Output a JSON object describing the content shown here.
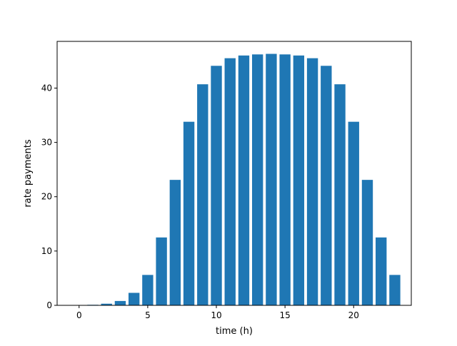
{
  "chart_data": {
    "type": "bar",
    "title": "",
    "xlabel": "time (h)",
    "ylabel": "rate payments",
    "x": [
      0,
      1,
      2,
      3,
      4,
      5,
      6,
      7,
      8,
      9,
      10,
      11,
      12,
      13,
      14,
      15,
      16,
      17,
      18,
      19,
      20,
      21,
      22,
      23
    ],
    "values": [
      0.0,
      0.1,
      0.3,
      0.8,
      2.3,
      5.6,
      12.5,
      23.1,
      33.8,
      40.7,
      44.1,
      45.5,
      46.0,
      46.2,
      46.3,
      46.2,
      46.0,
      45.5,
      44.1,
      40.7,
      33.8,
      23.1,
      12.5,
      5.6
    ],
    "xlim": [
      -1.6,
      24.2
    ],
    "ylim": [
      0,
      48.6
    ],
    "xticks": [
      0,
      5,
      10,
      15,
      20
    ],
    "yticks": [
      0,
      10,
      20,
      30,
      40
    ],
    "bar_width": 0.8,
    "grid": false,
    "legend": "none",
    "colors": {
      "bar": "#1f77b4",
      "axis": "#000000",
      "background": "#ffffff"
    }
  }
}
